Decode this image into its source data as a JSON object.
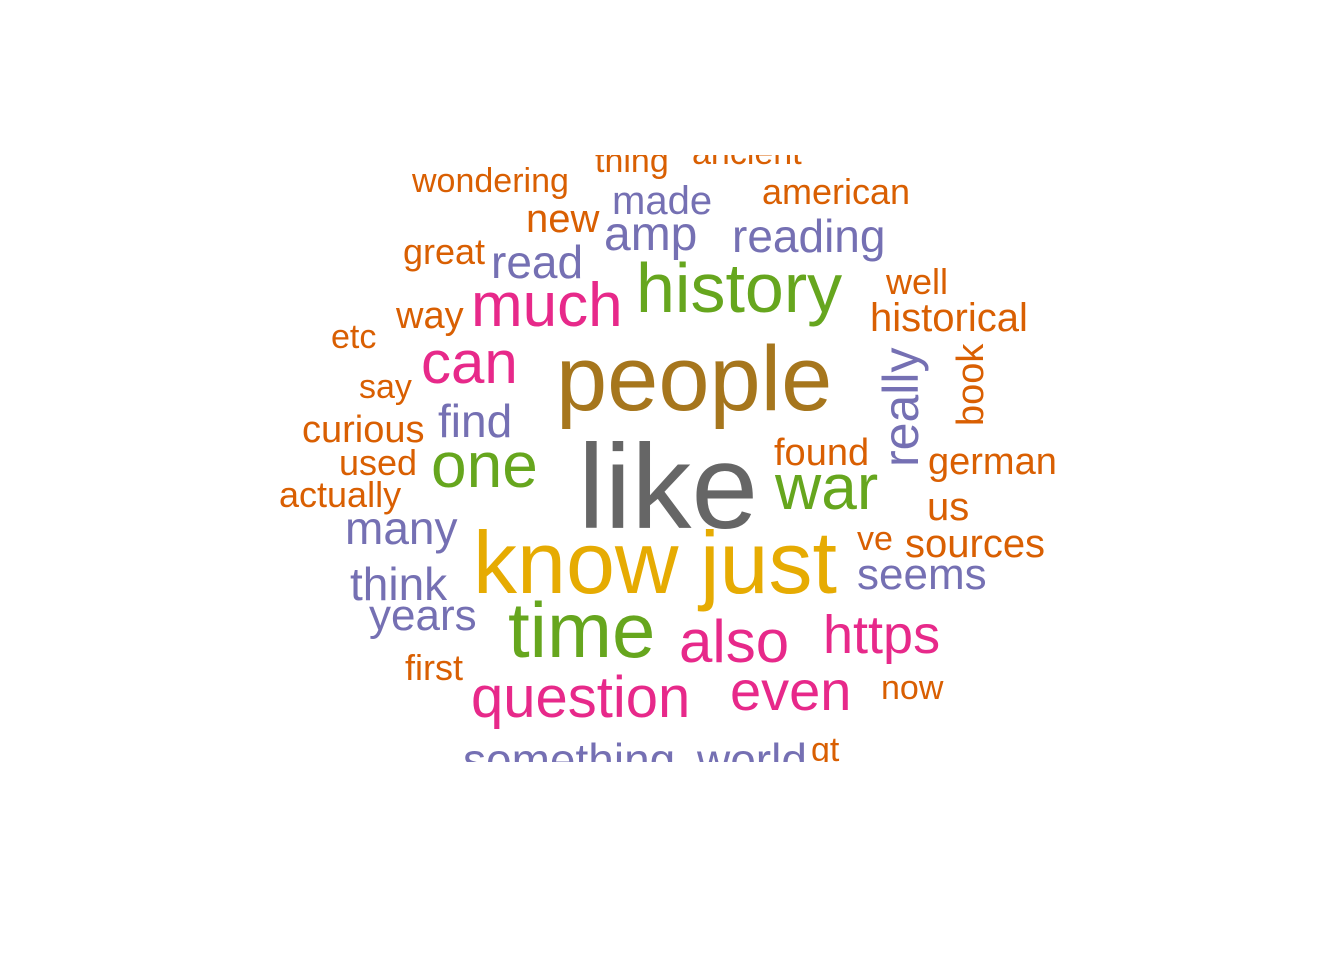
{
  "palette": {
    "gray": "#666666",
    "brown": "#A6761D",
    "yellow": "#E6AB02",
    "green": "#66A61E",
    "magenta": "#E7298A",
    "purple": "#7570B3",
    "orange": "#D95F02"
  },
  "words": [
    {
      "text": "like",
      "color": "gray",
      "rotated": false
    },
    {
      "text": "people",
      "color": "brown",
      "rotated": false
    },
    {
      "text": "know",
      "color": "yellow",
      "rotated": false
    },
    {
      "text": "just",
      "color": "yellow",
      "rotated": false
    },
    {
      "text": "history",
      "color": "green",
      "rotated": false
    },
    {
      "text": "time",
      "color": "green",
      "rotated": false
    },
    {
      "text": "one",
      "color": "green",
      "rotated": false
    },
    {
      "text": "war",
      "color": "green",
      "rotated": false
    },
    {
      "text": "much",
      "color": "magenta",
      "rotated": false
    },
    {
      "text": "can",
      "color": "magenta",
      "rotated": false
    },
    {
      "text": "also",
      "color": "magenta",
      "rotated": false
    },
    {
      "text": "question",
      "color": "magenta",
      "rotated": false
    },
    {
      "text": "even",
      "color": "magenta",
      "rotated": false
    },
    {
      "text": "https",
      "color": "magenta",
      "rotated": false
    },
    {
      "text": "amp",
      "color": "purple",
      "rotated": false
    },
    {
      "text": "made",
      "color": "purple",
      "rotated": false
    },
    {
      "text": "reading",
      "color": "purple",
      "rotated": false
    },
    {
      "text": "read",
      "color": "purple",
      "rotated": false
    },
    {
      "text": "find",
      "color": "purple",
      "rotated": false
    },
    {
      "text": "really",
      "color": "purple",
      "rotated": true
    },
    {
      "text": "many",
      "color": "purple",
      "rotated": false
    },
    {
      "text": "think",
      "color": "purple",
      "rotated": false
    },
    {
      "text": "years",
      "color": "purple",
      "rotated": false
    },
    {
      "text": "seems",
      "color": "purple",
      "rotated": false
    },
    {
      "text": "something",
      "color": "purple",
      "rotated": false
    },
    {
      "text": "world",
      "color": "purple",
      "rotated": false
    },
    {
      "text": "wondering",
      "color": "orange",
      "rotated": false
    },
    {
      "text": "thing",
      "color": "orange",
      "rotated": false
    },
    {
      "text": "ancient",
      "color": "orange",
      "rotated": false
    },
    {
      "text": "american",
      "color": "orange",
      "rotated": false
    },
    {
      "text": "new",
      "color": "orange",
      "rotated": false
    },
    {
      "text": "great",
      "color": "orange",
      "rotated": false
    },
    {
      "text": "well",
      "color": "orange",
      "rotated": false
    },
    {
      "text": "historical",
      "color": "orange",
      "rotated": false
    },
    {
      "text": "way",
      "color": "orange",
      "rotated": false
    },
    {
      "text": "etc",
      "color": "orange",
      "rotated": false
    },
    {
      "text": "say",
      "color": "orange",
      "rotated": false
    },
    {
      "text": "book",
      "color": "orange",
      "rotated": true
    },
    {
      "text": "curious",
      "color": "orange",
      "rotated": false
    },
    {
      "text": "found",
      "color": "orange",
      "rotated": false
    },
    {
      "text": "german",
      "color": "orange",
      "rotated": false
    },
    {
      "text": "used",
      "color": "orange",
      "rotated": false
    },
    {
      "text": "actually",
      "color": "orange",
      "rotated": false
    },
    {
      "text": "us",
      "color": "orange",
      "rotated": false
    },
    {
      "text": "ve",
      "color": "orange",
      "rotated": false
    },
    {
      "text": "sources",
      "color": "orange",
      "rotated": false
    },
    {
      "text": "first",
      "color": "orange",
      "rotated": false
    },
    {
      "text": "now",
      "color": "orange",
      "rotated": false
    },
    {
      "text": "gt",
      "color": "orange",
      "rotated": false
    }
  ]
}
